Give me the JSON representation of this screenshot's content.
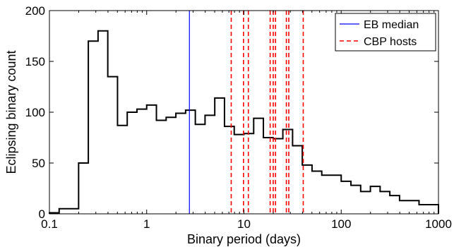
{
  "chart_data": {
    "type": "histogram",
    "xlabel": "Binary period (days)",
    "ylabel": "Eclipsing binary count",
    "x_scale": "log",
    "xlim": [
      0.1,
      1000
    ],
    "ylim": [
      0,
      200
    ],
    "x_ticks": [
      0.1,
      1,
      10,
      100,
      1000
    ],
    "x_tick_labels": [
      "0.1",
      "1",
      "10",
      "100",
      "1000"
    ],
    "y_ticks": [
      0,
      50,
      100,
      150,
      200
    ],
    "y_tick_labels": [
      "0",
      "50",
      "100",
      "150",
      "200"
    ],
    "grid": false,
    "legend_position": "top-right",
    "series": [
      {
        "name": "EB median",
        "kind": "vline",
        "color": "#0000ff",
        "style": "solid",
        "x": [
          2.75
        ]
      },
      {
        "name": "CBP hosts",
        "kind": "vline",
        "color": "#ff0000",
        "style": "dashed",
        "x": [
          7.4,
          9.9,
          11.1,
          18.6,
          20.0,
          21.1,
          27.3,
          28.9,
          40.7
        ]
      }
    ],
    "histogram": {
      "color": "#000000",
      "bin_edges_log10": [
        -1.0,
        -0.9,
        -0.8,
        -0.7,
        -0.6,
        -0.5,
        -0.4,
        -0.3,
        -0.2,
        -0.1,
        0.0,
        0.1,
        0.2,
        0.3,
        0.4,
        0.5,
        0.6,
        0.7,
        0.8,
        0.9,
        1.0,
        1.1,
        1.2,
        1.3,
        1.4,
        1.5,
        1.6,
        1.7,
        1.8,
        1.9,
        2.0,
        2.1,
        2.2,
        2.3,
        2.4,
        2.5,
        2.6,
        2.7,
        2.8,
        2.9,
        3.0
      ],
      "counts": [
        1,
        5,
        5,
        50,
        170,
        180,
        135,
        87,
        100,
        103,
        107,
        92,
        95,
        99,
        102,
        88,
        97,
        114,
        86,
        78,
        79,
        94,
        75,
        74,
        83,
        67,
        48,
        42,
        38,
        38,
        32,
        28,
        22,
        27,
        22,
        18,
        13,
        13,
        9,
        9
      ]
    }
  }
}
